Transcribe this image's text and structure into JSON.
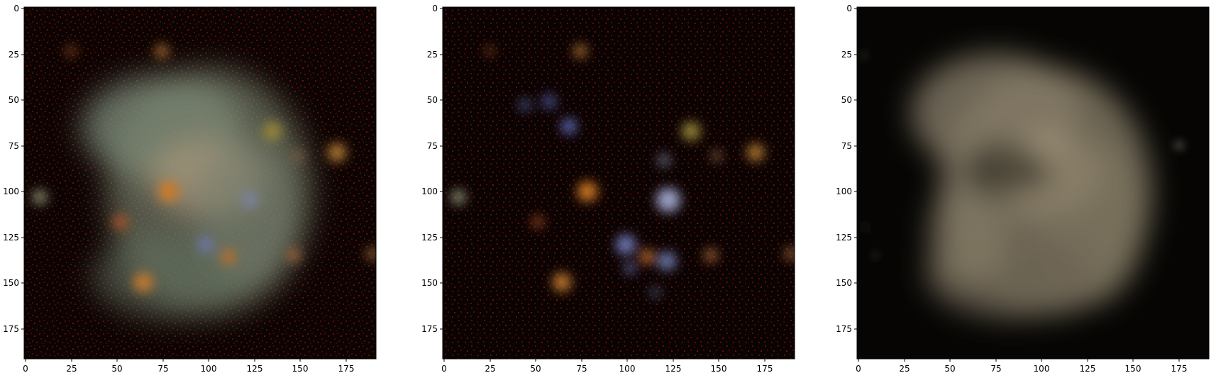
{
  "figure": {
    "panels": [
      {
        "id": "panel-1",
        "description_visible": "noisy galaxy image with red speckle noise",
        "x_ticks": [
          "0",
          "25",
          "50",
          "75",
          "100",
          "125",
          "150",
          "175"
        ],
        "y_ticks": [
          "0",
          "25",
          "50",
          "75",
          "100",
          "125",
          "150",
          "175"
        ]
      },
      {
        "id": "panel-2",
        "description_visible": "noisy field of compact sources",
        "x_ticks": [
          "0",
          "25",
          "50",
          "75",
          "100",
          "125",
          "150",
          "175"
        ],
        "y_ticks": [
          "0",
          "25",
          "50",
          "75",
          "100",
          "125",
          "150",
          "175"
        ]
      },
      {
        "id": "panel-3",
        "description_visible": "smooth galaxy reconstruction",
        "x_ticks": [
          "0",
          "25",
          "50",
          "75",
          "100",
          "125",
          "150",
          "175"
        ],
        "y_ticks": [
          "0",
          "25",
          "50",
          "75",
          "100",
          "125",
          "150",
          "175"
        ]
      }
    ]
  },
  "colors": {
    "background": "#ffffff",
    "axis": "#000000",
    "noise_red": "#5a0f0a",
    "galaxy_beige": "#b8a88c",
    "source_orange": "#d07a28",
    "source_blue": "#6e78b4",
    "source_olive": "#98883a"
  }
}
